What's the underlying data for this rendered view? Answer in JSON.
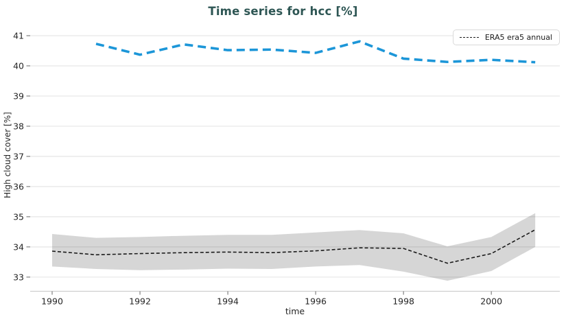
{
  "figure": {
    "title": "Time series for hcc [%]",
    "title_color": "#2e5654"
  },
  "chart_data": {
    "type": "line",
    "title": "Time series for hcc [%]",
    "xlabel": "time",
    "ylabel": "High cloud cover [%]",
    "x_range": [
      1989.5,
      2001.56
    ],
    "y_range": [
      32.53,
      41.5
    ],
    "x_ticks": [
      1990,
      1992,
      1994,
      1996,
      1998,
      2000
    ],
    "y_ticks": [
      33,
      34,
      35,
      36,
      37,
      38,
      39,
      40,
      41
    ],
    "grid": true,
    "colors": {
      "gridline": "#e6e6e6",
      "axis_line": "#cfcfcf",
      "tick_mark": "#666666",
      "tick_label": "#262626",
      "band_fill": "rgba(0,0,0,0.16)"
    },
    "legend": {
      "position": "top-right",
      "entries": [
        {
          "label": "ERA5 era5 annual",
          "line_style": "dashed",
          "color": "#1a1a1a"
        }
      ]
    },
    "series": [
      {
        "name": "ERA5 era5 annual",
        "color": "#1a1a1a",
        "dash": [
          5,
          3
        ],
        "width": 1.6,
        "x": [
          1990,
          1991,
          1992,
          1993,
          1994,
          1995,
          1996,
          1997,
          1998,
          1999,
          2000,
          2001
        ],
        "y": [
          33.86,
          33.74,
          33.78,
          33.81,
          33.83,
          33.81,
          33.87,
          33.97,
          33.95,
          33.46,
          33.78,
          34.57
        ],
        "band": {
          "upper": [
            34.43,
            34.3,
            34.33,
            34.37,
            34.4,
            34.4,
            34.48,
            34.56,
            34.45,
            34.02,
            34.33,
            35.12
          ],
          "lower": [
            33.35,
            33.27,
            33.23,
            33.25,
            33.28,
            33.27,
            33.35,
            33.4,
            33.18,
            32.88,
            33.2,
            34.0
          ]
        }
      },
      {
        "name": "era5 annual",
        "color": "#1c96d8",
        "dash": [
          12,
          7
        ],
        "width": 3.6,
        "x": [
          1991,
          1992,
          1993,
          1994,
          1995,
          1996,
          1997,
          1998,
          1999,
          2000,
          2001
        ],
        "y": [
          40.73,
          40.37,
          40.71,
          40.52,
          40.54,
          40.43,
          40.81,
          40.24,
          40.13,
          40.2,
          40.12
        ]
      }
    ]
  }
}
